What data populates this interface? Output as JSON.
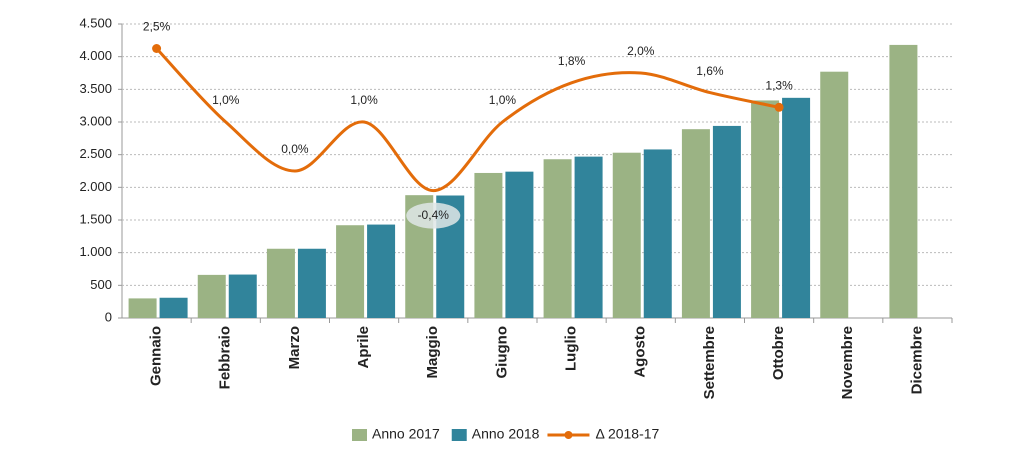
{
  "chart_data": {
    "type": "bar",
    "categories": [
      "Gennaio",
      "Febbraio",
      "Marzo",
      "Aprile",
      "Maggio",
      "Giugno",
      "Luglio",
      "Agosto",
      "Settembre",
      "Ottobre",
      "Novembre",
      "Dicembre"
    ],
    "series": [
      {
        "name": "Anno 2017",
        "type": "bar",
        "color": "#9bb384",
        "values": [
          300,
          660,
          1060,
          1420,
          1880,
          2220,
          2430,
          2530,
          2890,
          3330,
          3770,
          4180
        ]
      },
      {
        "name": "Anno 2018",
        "type": "bar",
        "color": "#31849b",
        "values": [
          310,
          665,
          1060,
          1430,
          1875,
          2240,
          2470,
          2580,
          2940,
          3370,
          null,
          null
        ]
      },
      {
        "name": "Δ 2018-17",
        "type": "line",
        "axis": "y2",
        "color": "#e36c0a",
        "values": [
          2.5,
          1.0,
          0.0,
          1.0,
          -0.4,
          1.0,
          1.8,
          2.0,
          1.6,
          1.3,
          null,
          null
        ],
        "value_labels": [
          "2,5%",
          "1,0%",
          "0,0%",
          "1,0%",
          "-0,4%",
          "1,0%",
          "1,8%",
          "2,0%",
          "1,6%",
          "1,3%",
          null,
          null
        ]
      }
    ],
    "ylim": [
      0,
      4500
    ],
    "yticks": [
      0,
      500,
      {
        "value": 1000,
        "label": "1.000"
      },
      {
        "value": 1500,
        "label": "1.500"
      },
      {
        "value": 2000,
        "label": "2.000"
      },
      {
        "value": 2500,
        "label": "2.500"
      },
      {
        "value": 3000,
        "label": "3.000"
      },
      {
        "value": 3500,
        "label": "3.500"
      },
      {
        "value": 4000,
        "label": "4.000"
      },
      {
        "value": 4500,
        "label": "4.500"
      }
    ],
    "y2lim": [
      -3,
      3
    ],
    "grid": true
  }
}
